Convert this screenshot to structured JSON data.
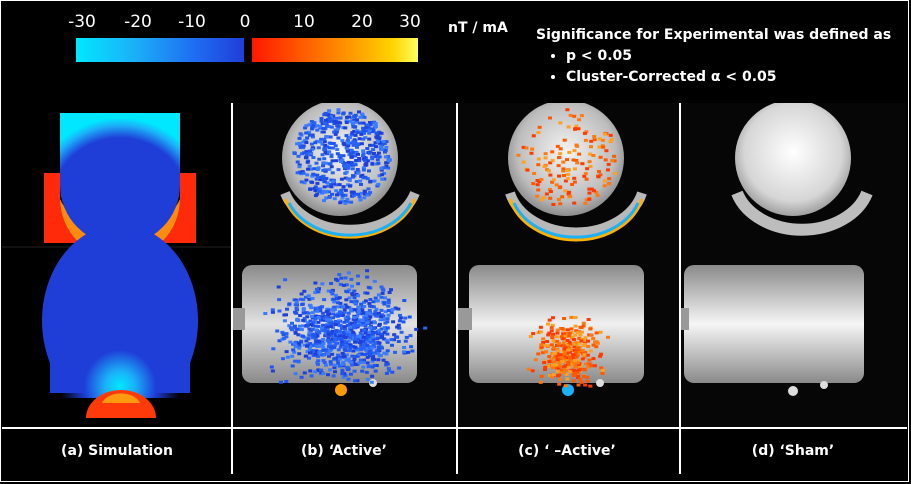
{
  "colorbar": {
    "ticks": [
      "-30",
      "-20",
      "-10",
      "0",
      "10",
      "20",
      "30"
    ],
    "unit": "nT / mA",
    "negative_colors": [
      "#00e8ff",
      "#1f3ed8"
    ],
    "positive_colors": [
      "#ff1800",
      "#ffff60"
    ]
  },
  "significance": {
    "heading": "Significance for Experimental was defined as",
    "criteria": [
      "p < 0.05",
      "Cluster-Corrected α < 0.05"
    ]
  },
  "panels": [
    {
      "caption": "(a) Simulation"
    },
    {
      "caption": "(b) ‘Active’"
    },
    {
      "caption": "(c) ‘ –Active’"
    },
    {
      "caption": "(d) ‘Sham’"
    }
  ]
}
